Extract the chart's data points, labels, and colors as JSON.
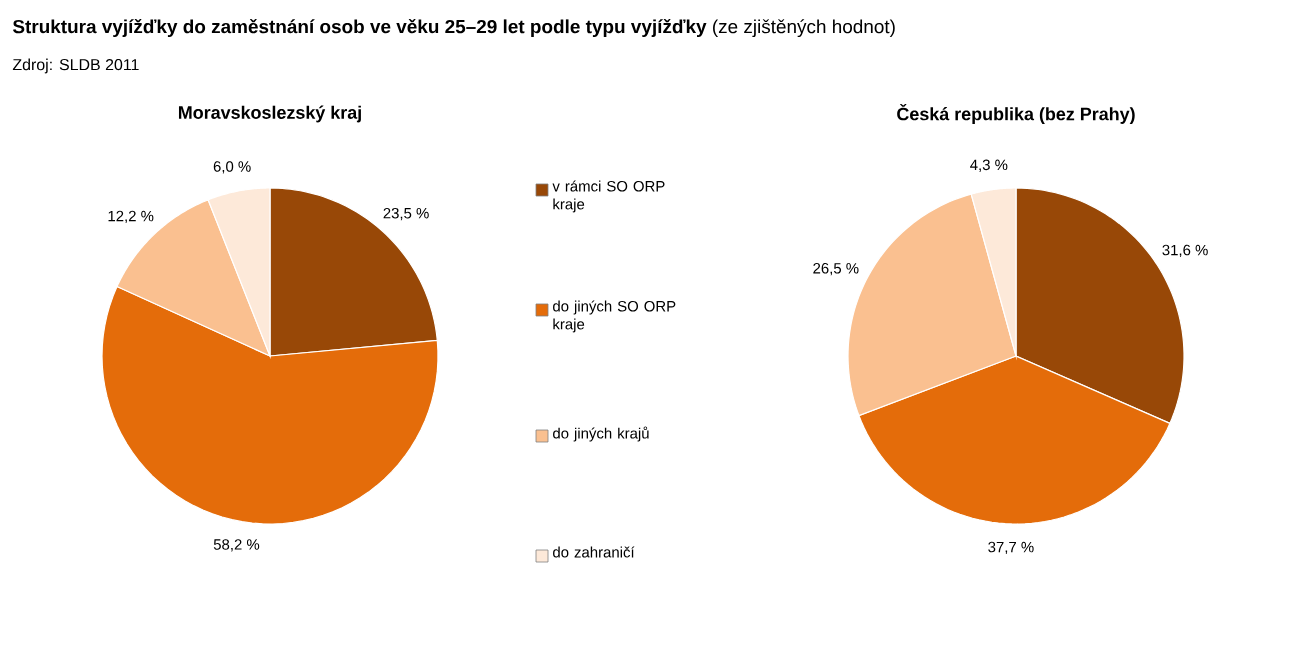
{
  "chart_data": [
    {
      "type": "pie",
      "title": "**Struktura vyjížďky do zaměstnání osob ve věku 25–29 let podle typu vyjížďky** (ze zjištěných hodnot)",
      "subtitle": "Moravskoslezský kraj",
      "annotations": [
        "Zdroj: SLDB 2011"
      ],
      "categories": [
        "v rámci SO ORP kraje",
        "do jiných SO ORP kraje",
        "do jiných krajů",
        "do zahraničí"
      ],
      "values": [
        23.5,
        58.2,
        12.2,
        6.0
      ],
      "colors": [
        "#984807",
        "#e46c0a",
        "#fac090",
        "#fde9d9"
      ],
      "value_labels": [
        "23,5 %",
        "58,2 %",
        "12,2 %",
        "6,0 %"
      ],
      "legend": "right"
    },
    {
      "type": "pie",
      "title": "Česká republika (bez Prahy)",
      "categories": [
        null,
        null,
        null,
        null
      ],
      "values": [
        31.6,
        37.7,
        26.5,
        4.3
      ],
      "colors": [
        "#984807",
        "#e46c0a",
        "#fac090",
        "#fde9d9"
      ],
      "value_labels": [
        "31,6 %",
        "37,7 %",
        "26,5 %",
        "4,3 %"
      ]
    }
  ]
}
